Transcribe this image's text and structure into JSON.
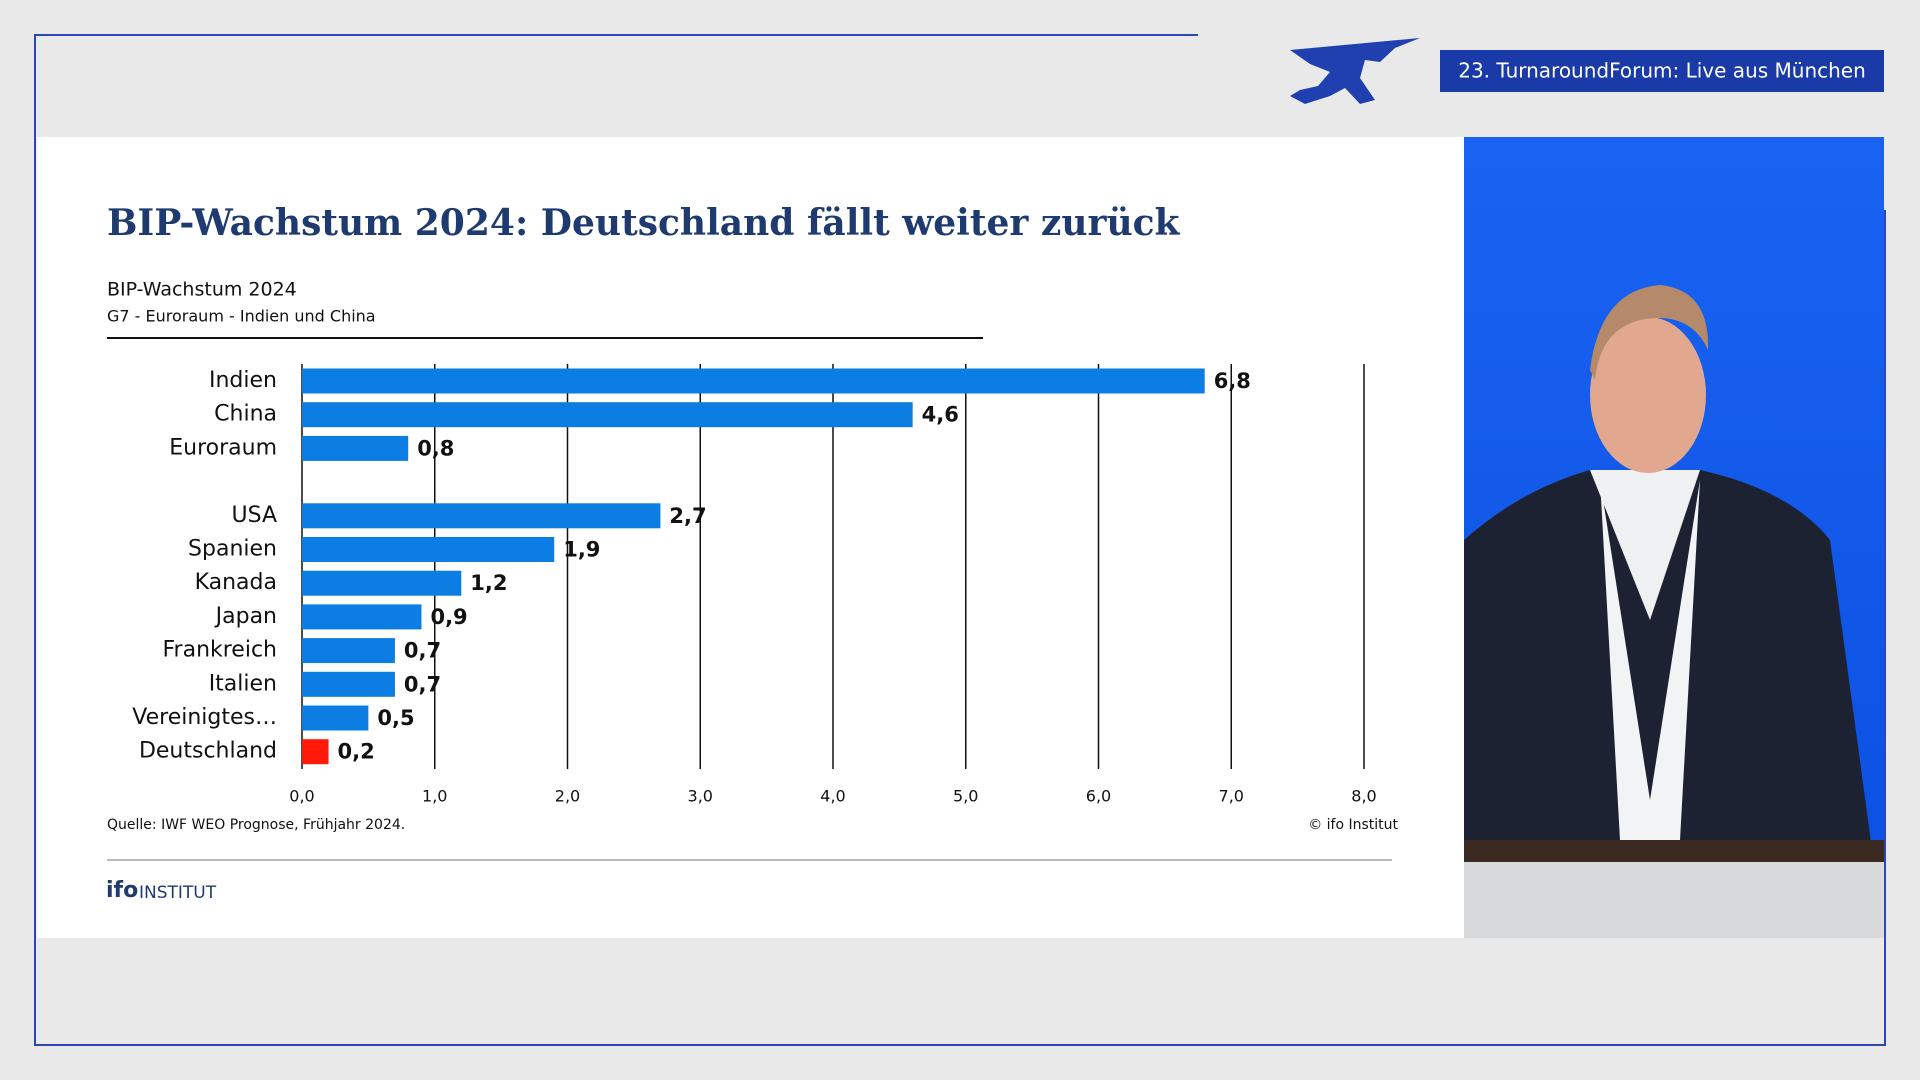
{
  "banner": "23. TurnaroundForum: Live aus München",
  "chart_data": {
    "type": "bar",
    "orientation": "horizontal",
    "title": "BIP-Wachstum 2024: Deutschland fällt weiter zurück",
    "subtitle": "BIP-Wachstum 2024",
    "subtitle2": "G7 - Euroraum - Indien und China",
    "categories": [
      "Indien",
      "China",
      "Euroraum",
      null,
      "USA",
      "Spanien",
      "Kanada",
      "Japan",
      "Frankreich",
      "Italien",
      "Vereinigtes…",
      "Deutschland"
    ],
    "values": [
      6.8,
      4.6,
      0.8,
      null,
      2.7,
      1.9,
      1.2,
      0.9,
      0.7,
      0.7,
      0.5,
      0.2
    ],
    "value_labels": [
      "6,8",
      "4,6",
      "0,8",
      null,
      "2,7",
      "1,9",
      "1,2",
      "0,9",
      "0,7",
      "0,7",
      "0,5",
      "0,2"
    ],
    "colors": [
      "#0b7de3",
      "#0b7de3",
      "#0b7de3",
      null,
      "#0b7de3",
      "#0b7de3",
      "#0b7de3",
      "#0b7de3",
      "#0b7de3",
      "#0b7de3",
      "#0b7de3",
      "#ff1a0a"
    ],
    "xlim": [
      0,
      8
    ],
    "xticks": [
      {
        "value": 0,
        "label": "0,0"
      },
      {
        "value": 1,
        "label": "1,0"
      },
      {
        "value": 2,
        "label": "2,0"
      },
      {
        "value": 3,
        "label": "3,0"
      },
      {
        "value": 4,
        "label": "4,0"
      },
      {
        "value": 5,
        "label": "5,0"
      },
      {
        "value": 6,
        "label": "6,0"
      },
      {
        "value": 7,
        "label": "7,0"
      },
      {
        "value": 8,
        "label": "8,0"
      }
    ],
    "grid": true,
    "source": "Quelle: IWF WEO Prognose, Frühjahr 2024.",
    "copyright": "© ifo Institut"
  },
  "logo": {
    "mark": "ifo",
    "text": "INSTITUT"
  }
}
